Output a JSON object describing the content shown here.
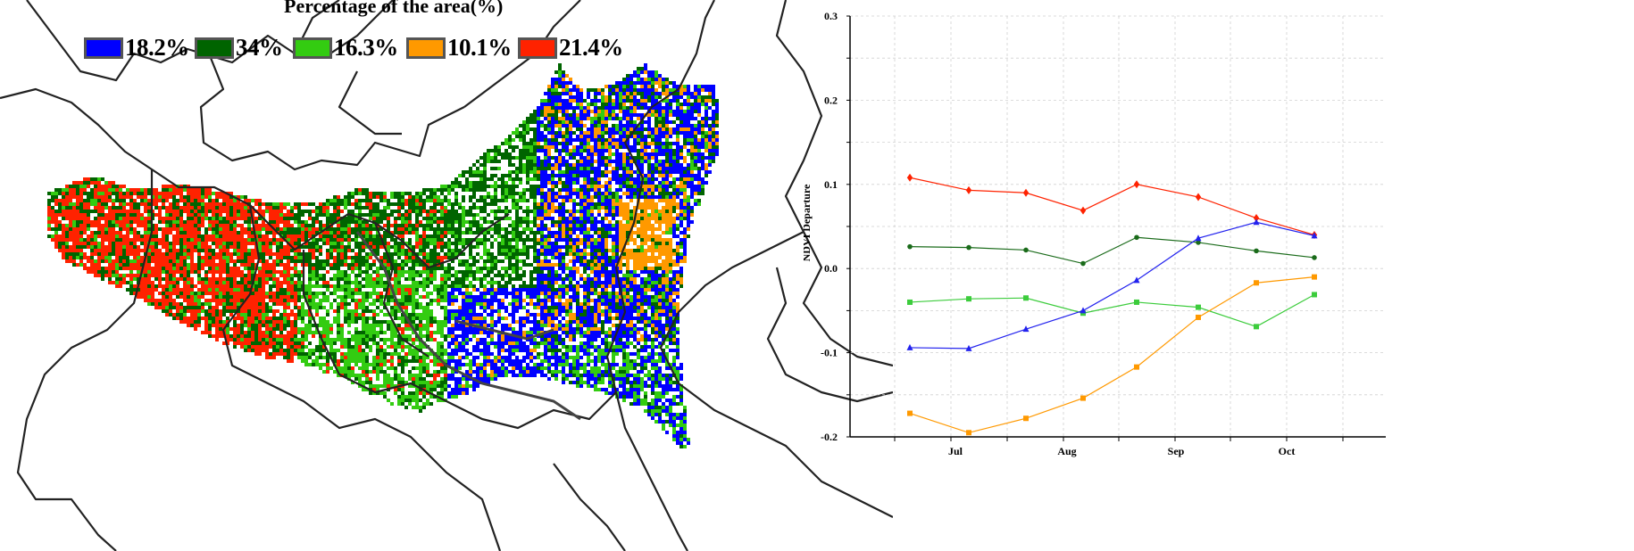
{
  "map": {
    "legend": {
      "title": "Percentage of the area(%)",
      "items": [
        {
          "label": "18.2%",
          "color": "#0000ff"
        },
        {
          "label": "34%",
          "color": "#006400"
        },
        {
          "label": "16.3%",
          "color": "#33cc11"
        },
        {
          "label": "10.1%",
          "color": "#ff9900"
        },
        {
          "label": "21.4%",
          "color": "#ff2200"
        }
      ]
    }
  },
  "chart_data": {
    "type": "line",
    "title": "",
    "xlabel": "",
    "ylabel": "NDVI Departure",
    "ylim": [
      -0.2,
      0.3
    ],
    "yticks": [
      "-0.2",
      "-0.1",
      "0.0",
      "0.1",
      "0.2",
      "0.3"
    ],
    "xtick_labels": [
      "Jul",
      "Aug",
      "Sep",
      "Oct"
    ],
    "grid": true,
    "x": [
      1,
      2,
      3,
      4,
      5,
      6,
      7,
      8
    ],
    "series": [
      {
        "color": "#ff2200",
        "marker": "diamond",
        "values": [
          0.108,
          0.093,
          0.09,
          0.069,
          0.1,
          0.085,
          0.06,
          0.04
        ]
      },
      {
        "color": "#1a6b1a",
        "marker": "circle",
        "values": [
          0.026,
          0.025,
          0.022,
          0.006,
          0.037,
          0.031,
          0.021,
          0.013
        ]
      },
      {
        "color": "#3ccc3c",
        "marker": "square",
        "values": [
          -0.04,
          -0.036,
          -0.035,
          -0.053,
          -0.04,
          -0.046,
          -0.069,
          -0.031
        ]
      },
      {
        "color": "#2222ee",
        "marker": "triangle",
        "values": [
          -0.094,
          -0.095,
          -0.072,
          -0.05,
          -0.014,
          0.036,
          0.055,
          0.039
        ]
      },
      {
        "color": "#ff9900",
        "marker": "square",
        "values": [
          -0.172,
          -0.195,
          -0.178,
          -0.154,
          -0.117,
          -0.058,
          -0.017,
          -0.01
        ]
      }
    ]
  }
}
